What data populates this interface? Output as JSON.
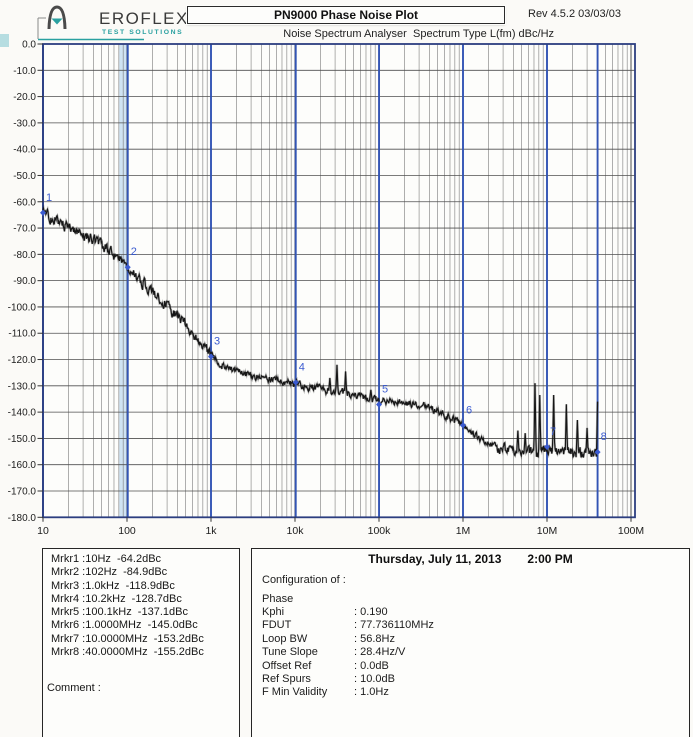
{
  "header": {
    "logo_brand": "EROFLEX",
    "logo_tagline": "TEST SOLUTIONS",
    "title": "PN9000 Phase Noise Plot",
    "revision": "Rev 4.5.2  03/03/03",
    "subtitle": "Noise Spectrum Analyser",
    "spectrum_type": "Spectrum Type  L(fm) dBc/Hz"
  },
  "chart_data": {
    "type": "line",
    "title": "PN9000 Phase Noise Plot",
    "x_scale": "log",
    "xlim_hz": [
      10,
      100000000
    ],
    "ylim_dbc_hz": [
      -180,
      0
    ],
    "y_tick_step_db": 10,
    "grid": "on",
    "x_tick_labels": [
      "10",
      "100",
      "1k",
      "10k",
      "100k",
      "1M",
      "10M",
      "100M"
    ],
    "y_tick_labels": [
      "0.0",
      "-10.0",
      "-20.0",
      "-30.0",
      "-40.0",
      "-50.0",
      "-60.0",
      "-70.0",
      "-80.0",
      "-90.0",
      "-100.0",
      "-110.0",
      "-120.0",
      "-130.0",
      "-140.0",
      "-150.0",
      "-160.0",
      "-170.0",
      "-180.0"
    ],
    "trace_breakpoints_log10hz_dbc": [
      [
        1.0,
        -64.2
      ],
      [
        1.18,
        -67.5
      ],
      [
        1.4,
        -71.0
      ],
      [
        1.6,
        -74.5
      ],
      [
        1.8,
        -79.0
      ],
      [
        2.009,
        -85.0
      ],
      [
        2.2,
        -91.0
      ],
      [
        2.45,
        -99.0
      ],
      [
        2.7,
        -107.0
      ],
      [
        2.88,
        -113.5
      ],
      [
        3.0,
        -118.8
      ],
      [
        3.15,
        -122.5
      ],
      [
        3.4,
        -125.5
      ],
      [
        3.7,
        -127.5
      ],
      [
        4.009,
        -129.2
      ],
      [
        4.3,
        -131.3
      ],
      [
        4.6,
        -133.0
      ],
      [
        5.0,
        -135.4
      ],
      [
        5.3,
        -136.3
      ],
      [
        5.55,
        -137.8
      ],
      [
        5.75,
        -140.5
      ],
      [
        6.0,
        -145.0
      ],
      [
        6.13,
        -148.5
      ],
      [
        6.3,
        -152.0
      ],
      [
        6.5,
        -154.3
      ],
      [
        6.75,
        -155.4
      ],
      [
        7.0,
        -154.6
      ],
      [
        7.3,
        -155.6
      ],
      [
        7.602,
        -155.2
      ]
    ],
    "noise_db": 1.25,
    "spurs_hz_dbc": [
      [
        26000,
        -127.0
      ],
      [
        31600,
        -122.0
      ],
      [
        40000,
        -124.5
      ],
      [
        80000,
        -131.5
      ],
      [
        4500000,
        -147.0
      ],
      [
        5500000,
        -148.0
      ],
      [
        7200000,
        -129.0
      ],
      [
        8200000,
        -133.5
      ],
      [
        12000000,
        -133.5
      ],
      [
        17000000,
        -137.0
      ],
      [
        23000000,
        -143.0
      ],
      [
        30000000,
        -146.0
      ],
      [
        40000000,
        -136.0
      ]
    ],
    "markers": [
      {
        "n": "1",
        "hz": 10,
        "dbc": -64.2
      },
      {
        "n": "2",
        "hz": 102,
        "dbc": -84.9
      },
      {
        "n": "3",
        "hz": 1000,
        "dbc": -118.9
      },
      {
        "n": "4",
        "hz": 10200,
        "dbc": -128.7
      },
      {
        "n": "5",
        "hz": 100100,
        "dbc": -137.1
      },
      {
        "n": "6",
        "hz": 1000000,
        "dbc": -145.0
      },
      {
        "n": "7",
        "hz": 10000000,
        "dbc": -153.2
      },
      {
        "n": "8",
        "hz": 40000000,
        "dbc": -155.2
      }
    ],
    "highlight_band_hz": 102,
    "trace_end_hz": 40000000
  },
  "marker_panel": {
    "lines": [
      "Mrkr1 :10Hz  -64.2dBc",
      "Mrkr2 :102Hz  -84.9dBc",
      "Mrkr3 :1.0kHz  -118.9dBc",
      "Mrkr4 :10.2kHz  -128.7dBc",
      "Mrkr5 :100.1kHz  -137.1dBc",
      "Mrkr6 :1.0000MHz  -145.0dBc",
      "Mrkr7 :10.0000MHz  -153.2dBc",
      "Mrkr8 :40.0000MHz  -155.2dBc"
    ],
    "comment_label": "Comment :"
  },
  "info_panel": {
    "date": "Thursday, July 11, 2013",
    "time": "2:00 PM",
    "config_label": "Configuration of :",
    "section": "Phase",
    "rows": [
      {
        "label": "Kphi",
        "value": ": 0.190"
      },
      {
        "label": "FDUT",
        "value": ": 77.736110MHz"
      },
      {
        "label": "Loop BW",
        "value": ": 56.8Hz"
      },
      {
        "label": "Tune Slope",
        "value": ": 28.4Hz/V"
      },
      {
        "label": "Offset Ref",
        "value": ": 0.0dB"
      },
      {
        "label": "Ref Spurs",
        "value": ": 10.0dB"
      },
      {
        "label": "F Min Validity",
        "value": ": 1.0Hz"
      }
    ]
  },
  "colors": {
    "border_navy": "#2c3e80",
    "marker_line": "#3254b4",
    "marker_label": "#3b5bd0",
    "highlight_band": "#cfe3f3",
    "grid_major": "#4f4f4f",
    "grid_minor": "#6f6f6f",
    "trace": "#161616",
    "teal": "#2aa0a0",
    "plot_bg": "#fdfdfb"
  }
}
